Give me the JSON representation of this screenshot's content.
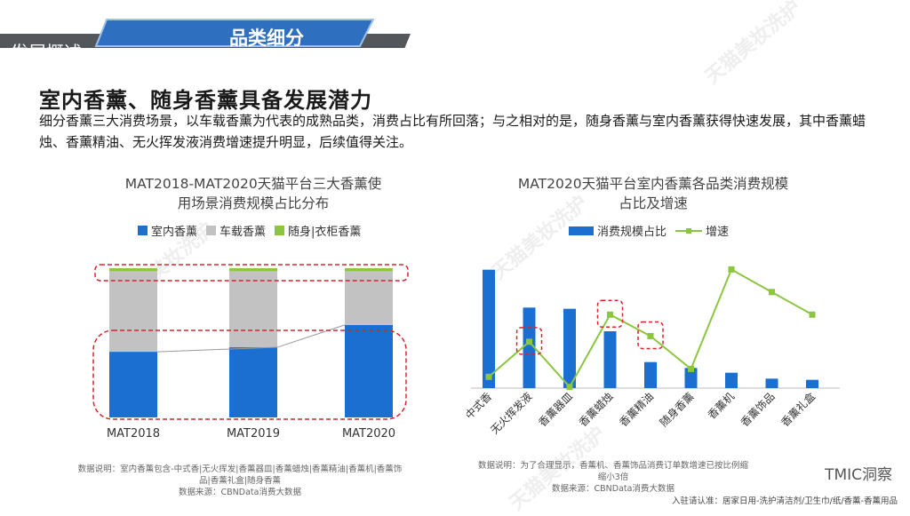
{
  "header": {
    "section_tag": "发展概述",
    "tab_title": "品类细分",
    "colors": {
      "dark_bar": "#53575c",
      "tab_blue": "#2e6fbf"
    }
  },
  "headline": "室内香薰、随身香薰具备发展潜力",
  "description": "细分香薰三大消费场景，以车载香薰为代表的成熟品类，消费占比有所回落；与之相对的是，随身香薰与室内香薰获得快速发展，其中香薰蜡烛、香薰精油、无火挥发液消费增速提升明显，后续值得关注。",
  "watermark": "天猫美妆洗护",
  "chart_data": [
    {
      "type": "bar",
      "stacked": true,
      "title": "MAT2018-MAT2020天猫平台三大香薰使用场景消费规模占比分布",
      "title_lines": [
        "MAT2018-MAT2020天猫平台三大香薰使",
        "用场景消费规模占比分布"
      ],
      "categories": [
        "MAT2018",
        "MAT2019",
        "MAT2020"
      ],
      "series": [
        {
          "name": "室内香薰",
          "color": "#1a6fd1",
          "values": [
            44,
            47,
            62
          ]
        },
        {
          "name": "车载香薰",
          "color": "#c2c2c2",
          "values": [
            54,
            51,
            36
          ]
        },
        {
          "name": "随身|衣柜香薰",
          "color": "#8cc63f",
          "values": [
            2,
            2,
            2
          ]
        }
      ],
      "ylim": [
        0,
        100
      ],
      "legend_position": "top",
      "notes": [
        "数据说明：室内香薰包含-中式香|无火挥发|香薰器皿|香薰蜡烛|香薰精油|香薰机|香薰饰",
        "品|香薰礼盒|随身香薰"
      ],
      "source": "数据来源：CBNData消费大数据"
    },
    {
      "type": "bar",
      "title": "MAT2020天猫平台室内香薰各品类消费规模占比及增速",
      "title_lines": [
        "MAT2020天猫平台室内香薰各品类消费规模",
        "占比及增速"
      ],
      "categories": [
        "中式香",
        "无火挥发液",
        "香薰器皿",
        "香薰蜡烛",
        "香薰精油",
        "随身香薰",
        "香薰机",
        "香薰饰品",
        "香薰礼盒"
      ],
      "series": [
        {
          "name": "消费规模占比",
          "type": "bar",
          "color": "#1a6fd1",
          "values": [
            100,
            68,
            67,
            48,
            22,
            17,
            13,
            8,
            7
          ]
        },
        {
          "name": "增速",
          "type": "line",
          "color": "#8cc63f",
          "values": [
            10,
            41,
            1,
            65,
            46,
            17,
            105,
            85,
            65
          ]
        }
      ],
      "ylim_bar": [
        0,
        105
      ],
      "ylim_line": [
        0,
        110
      ],
      "legend_position": "top",
      "notes": [
        "数据说明：为了合理显示，香薰机、香薰饰品消费订单数增速已按比例缩",
        "缩小3倍"
      ],
      "source": "数据来源：CBNData消费大数据"
    }
  ],
  "brand": "TMIC洞察",
  "footer": "入驻请认准：居家日用-洗护清洁剂/卫生巾/纸/香薰-香薰用品"
}
